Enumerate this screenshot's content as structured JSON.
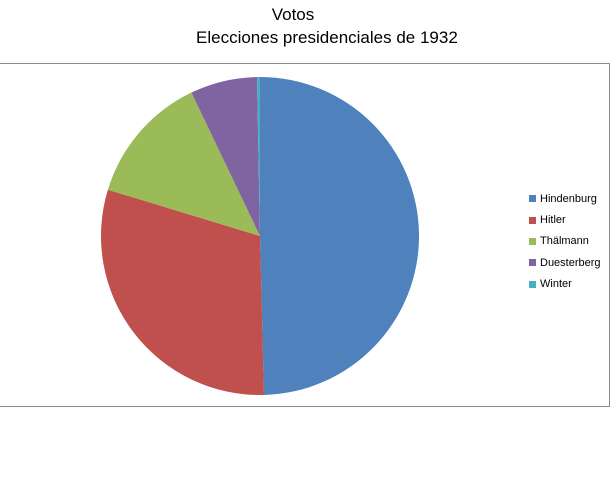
{
  "chart_data": {
    "type": "pie",
    "title": "Votos",
    "subtitle": "Elecciones presidenciales de 1932",
    "categories": [
      "Hindenburg",
      "Hitler",
      "Thälmann",
      "Duesterberg",
      "Winter"
    ],
    "values": [
      49.6,
      30.1,
      13.2,
      6.8,
      0.3
    ],
    "colors": [
      "#4f81bd",
      "#c0504d",
      "#9bbb59",
      "#8064a2",
      "#4bacc6"
    ],
    "start_angle_deg": 0,
    "direction": "clockwise",
    "legend_position": "right"
  }
}
